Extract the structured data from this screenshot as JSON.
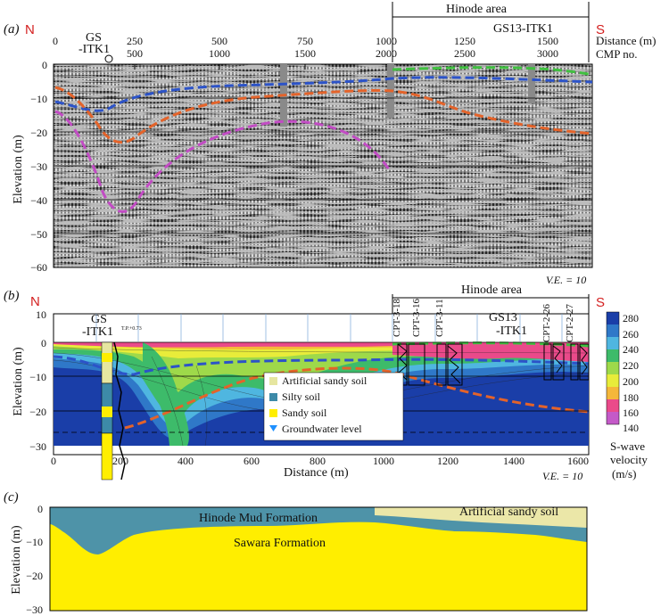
{
  "panel_a": {
    "label": "(a)",
    "north": "N",
    "south": "S",
    "hinode_area": "Hinode area",
    "borehole_left_line1": "GS",
    "borehole_left_line2": "-ITK1",
    "borehole_right": "GS13-ITK1",
    "distance_label": "Distance (m)",
    "cmp_label": "CMP no.",
    "distance_ticks": [
      "0",
      "250",
      "500",
      "750",
      "1000",
      "1250",
      "1500"
    ],
    "cmp_ticks": [
      "500",
      "1000",
      "1500",
      "2000",
      "2500",
      "3000"
    ],
    "elevation_ticks": [
      "0",
      "−10",
      "−20",
      "−30",
      "−40",
      "−50",
      "−60"
    ],
    "ylabel": "Elevation (m)",
    "ve": "V.E. = 10"
  },
  "panel_b": {
    "label": "(b)",
    "north": "N",
    "south": "S",
    "hinode_area": "Hinode area",
    "borehole_left_line1": "GS",
    "borehole_left_line2": "-ITK1",
    "borehole_right_line1": "GS13",
    "borehole_right_line2": "-ITK1",
    "cpt_labels": [
      "CPT-3-18",
      "CPT-3-16",
      "CPT-3-11",
      "CPT-2-26",
      "CPT-2-27"
    ],
    "tp_left": "T.P.+0.73",
    "x_ticks": [
      "0",
      "200",
      "400",
      "600",
      "800",
      "1000",
      "1200",
      "1400",
      "1600"
    ],
    "xlabel": "Distance (m)",
    "y_ticks": [
      "10",
      "0",
      "−10",
      "−20",
      "−30"
    ],
    "ylabel": "Elevation (m)",
    "legend": [
      {
        "label": "Artificial sandy soil",
        "color": "#e6e6a0"
      },
      {
        "label": "Silty soil",
        "color": "#3d8aa8"
      },
      {
        "label": "Sandy soil",
        "color": "#ffee00"
      },
      {
        "label": "Groundwater level",
        "color": "#1e90ff"
      }
    ],
    "colorbar_ticks": [
      "280",
      "260",
      "240",
      "220",
      "200",
      "180",
      "160",
      "140"
    ],
    "colorbar_colors": [
      "#1a3ea8",
      "#2f78c8",
      "#4fb6e0",
      "#3dbb6a",
      "#9ed94a",
      "#e8ec3a",
      "#f5b73a",
      "#ea4a8a",
      "#c45ac8"
    ],
    "colorbar_title_line1": "S-wave",
    "colorbar_title_line2": "velocity",
    "colorbar_title_line3": "(m/s)",
    "ve": "V.E. = 10"
  },
  "panel_c": {
    "label": "(c)",
    "formation_mud": "Hinode Mud Formation",
    "formation_artificial": "Artificial sandy soil",
    "formation_sawara": "Sawara Formation",
    "y_ticks": [
      "0",
      "−10",
      "−20",
      "−30"
    ],
    "ylabel": "Elevation (m)",
    "colors": {
      "sawara": "#ffee00",
      "mud": "#4e93a8",
      "artificial": "#ebe7a8"
    }
  }
}
